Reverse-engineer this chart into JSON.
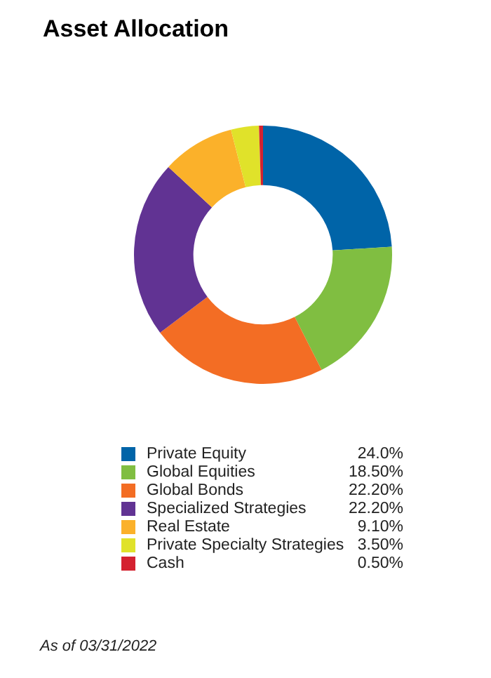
{
  "chart_data": {
    "type": "donut",
    "title": "Asset Allocation",
    "categories": [
      "Private Equity",
      "Global Equities",
      "Global Bonds",
      "Specialized Strategies",
      "Real Estate",
      "Private Specialty Strategies",
      "Cash"
    ],
    "values": [
      24.0,
      18.5,
      22.2,
      22.2,
      9.1,
      3.5,
      0.5
    ],
    "value_labels": [
      "24.0%",
      "18.50%",
      "22.20%",
      "22.20%",
      "9.10%",
      "3.50%",
      "0.50%"
    ],
    "colors": [
      "#0064a8",
      "#80be41",
      "#f36d24",
      "#613393",
      "#fbb12a",
      "#e0e22a",
      "#d42230"
    ],
    "legend": "bottom",
    "annotations": [
      "As of 03/31/2022"
    ]
  }
}
